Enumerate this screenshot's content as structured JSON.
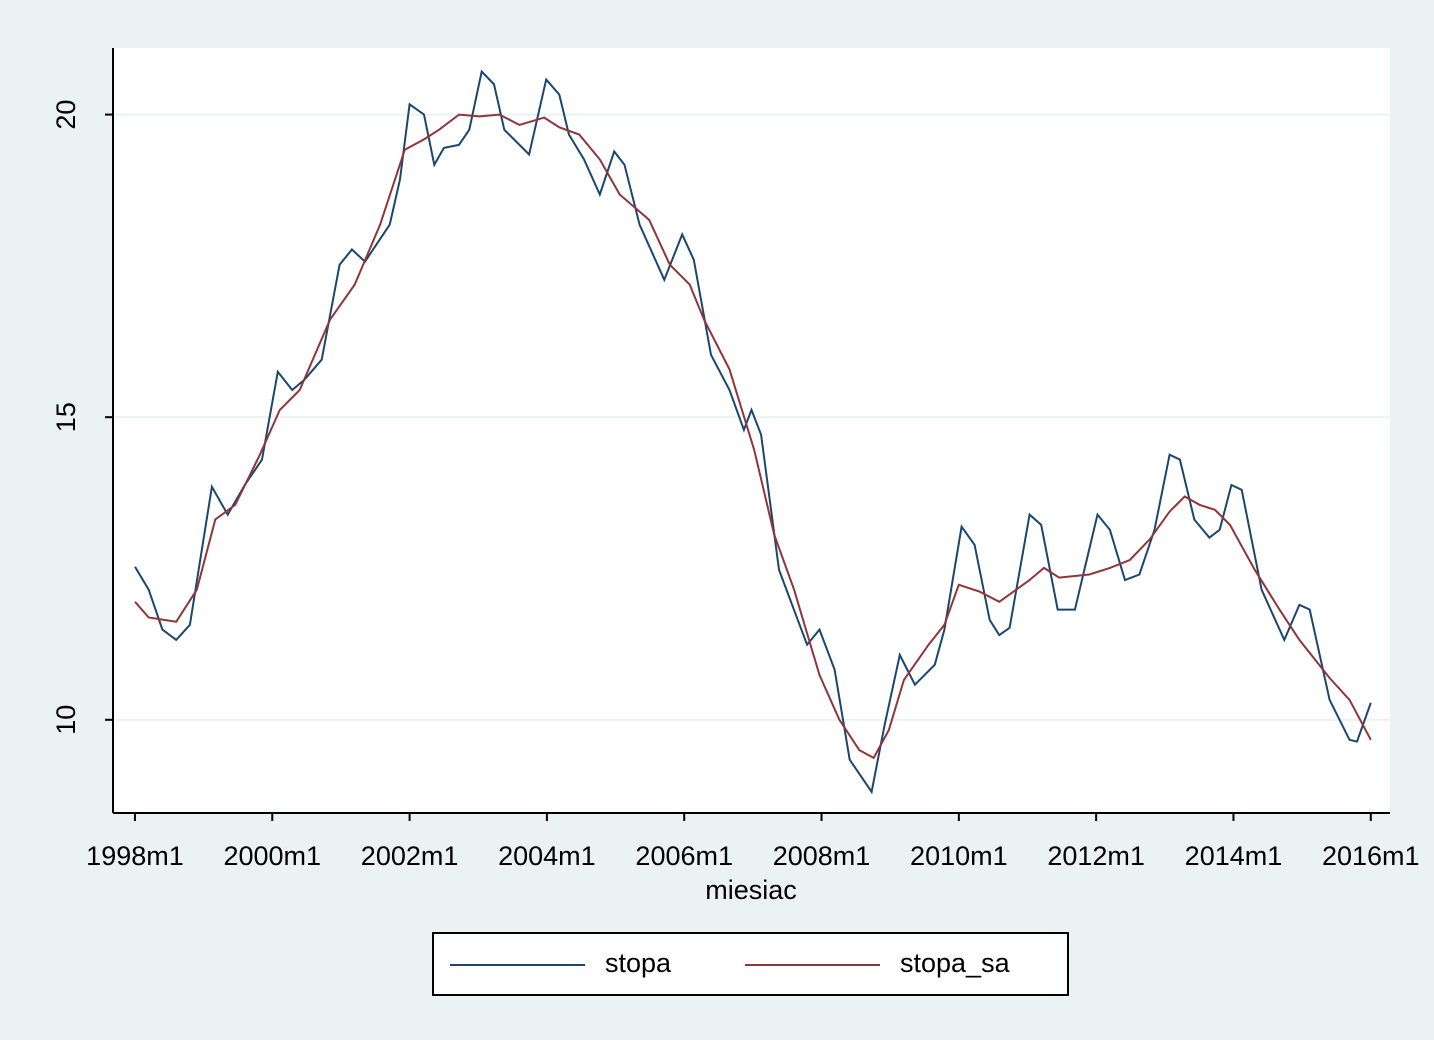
{
  "chart_data": {
    "type": "line",
    "x_label": "miesiac",
    "xlim": [
      1997.68,
      2016.28
    ],
    "xticks": [
      {
        "value": 1998,
        "label": "1998m1"
      },
      {
        "value": 2000,
        "label": "2000m1"
      },
      {
        "value": 2002,
        "label": "2002m1"
      },
      {
        "value": 2004,
        "label": "2004m1"
      },
      {
        "value": 2006,
        "label": "2006m1"
      },
      {
        "value": 2008,
        "label": "2008m1"
      },
      {
        "value": 2010,
        "label": "2010m1"
      },
      {
        "value": 2012,
        "label": "2012m1"
      },
      {
        "value": 2014,
        "label": "2014m1"
      },
      {
        "value": 2016,
        "label": "2016m1"
      }
    ],
    "ylim": [
      8.46,
      21.1
    ],
    "yticks": [
      10,
      15,
      20
    ],
    "grid": true,
    "legend_position": "bottom",
    "series": [
      {
        "name": "stopa",
        "color": "#1a476f",
        "x": [
          1998.0,
          1998.2,
          1998.4,
          1998.6,
          1998.8,
          1998.95,
          1999.12,
          1999.35,
          1999.6,
          1999.85,
          2000.08,
          2000.29,
          2000.47,
          2000.72,
          2000.98,
          2001.16,
          2001.35,
          2001.71,
          2001.86,
          2002.0,
          2002.21,
          2002.36,
          2002.5,
          2002.72,
          2002.87,
          2003.05,
          2003.23,
          2003.38,
          2003.74,
          2003.99,
          2004.18,
          2004.32,
          2004.54,
          2004.77,
          2004.98,
          2005.13,
          2005.35,
          2005.71,
          2005.97,
          2006.14,
          2006.39,
          2006.66,
          2006.87,
          2006.98,
          2007.12,
          2007.38,
          2007.68,
          2007.79,
          2007.97,
          2008.19,
          2008.41,
          2008.73,
          2008.92,
          2009.14,
          2009.36,
          2009.65,
          2009.79,
          2010.04,
          2010.23,
          2010.45,
          2010.59,
          2010.74,
          2011.03,
          2011.2,
          2011.44,
          2011.69,
          2012.02,
          2012.2,
          2012.42,
          2012.63,
          2012.85,
          2013.07,
          2013.22,
          2013.43,
          2013.65,
          2013.8,
          2013.97,
          2014.12,
          2014.41,
          2014.74,
          2014.96,
          2015.11,
          2015.4,
          2015.69,
          2015.8,
          2016.0
        ],
        "values": [
          12.53,
          12.15,
          11.49,
          11.32,
          11.57,
          12.64,
          13.85,
          13.39,
          13.88,
          14.3,
          15.75,
          15.45,
          15.62,
          15.95,
          17.52,
          17.77,
          17.57,
          18.18,
          18.93,
          20.17,
          20.0,
          19.17,
          19.45,
          19.5,
          19.75,
          20.71,
          20.5,
          19.75,
          19.34,
          20.58,
          20.33,
          19.67,
          19.26,
          18.68,
          19.39,
          19.17,
          18.18,
          17.27,
          18.02,
          17.6,
          16.03,
          15.45,
          14.79,
          15.12,
          14.71,
          12.48,
          11.57,
          11.24,
          11.49,
          10.83,
          9.34,
          8.81,
          9.92,
          11.07,
          10.58,
          10.91,
          11.49,
          13.19,
          12.89,
          11.65,
          11.4,
          11.52,
          13.39,
          13.22,
          11.82,
          11.82,
          13.39,
          13.14,
          12.31,
          12.4,
          13.14,
          14.38,
          14.3,
          13.31,
          13.01,
          13.14,
          13.88,
          13.8,
          12.15,
          11.32,
          11.9,
          11.82,
          10.33,
          9.67,
          9.64,
          10.28
        ]
      },
      {
        "name": "stopa_sa",
        "color": "#90353b",
        "x": [
          1998.0,
          1998.2,
          1998.6,
          1998.9,
          1999.17,
          1999.46,
          1999.82,
          2000.11,
          2000.4,
          2000.84,
          2001.2,
          2001.57,
          2001.93,
          2002.21,
          2002.43,
          2002.72,
          2003.02,
          2003.31,
          2003.6,
          2003.96,
          2004.18,
          2004.47,
          2004.77,
          2005.06,
          2005.49,
          2005.79,
          2006.08,
          2006.29,
          2006.66,
          2007.02,
          2007.31,
          2007.6,
          2007.97,
          2008.26,
          2008.55,
          2008.76,
          2008.98,
          2009.2,
          2009.56,
          2009.79,
          2010.0,
          2010.3,
          2010.59,
          2011.03,
          2011.24,
          2011.46,
          2011.9,
          2012.2,
          2012.49,
          2012.78,
          2013.07,
          2013.29,
          2013.51,
          2013.73,
          2013.95,
          2014.31,
          2014.67,
          2014.96,
          2015.4,
          2015.69,
          2016.0
        ],
        "values": [
          11.95,
          11.69,
          11.62,
          12.15,
          13.31,
          13.55,
          14.38,
          15.12,
          15.45,
          16.61,
          17.19,
          18.18,
          19.42,
          19.59,
          19.75,
          20.0,
          19.97,
          20.0,
          19.83,
          19.95,
          19.79,
          19.67,
          19.26,
          18.68,
          18.26,
          17.52,
          17.19,
          16.61,
          15.79,
          14.46,
          13.06,
          12.15,
          10.74,
          10.0,
          9.5,
          9.37,
          9.83,
          10.66,
          11.24,
          11.57,
          12.23,
          12.12,
          11.95,
          12.31,
          12.51,
          12.35,
          12.4,
          12.51,
          12.64,
          12.98,
          13.44,
          13.69,
          13.55,
          13.47,
          13.22,
          12.48,
          11.82,
          11.32,
          10.69,
          10.33,
          9.67
        ]
      }
    ]
  }
}
